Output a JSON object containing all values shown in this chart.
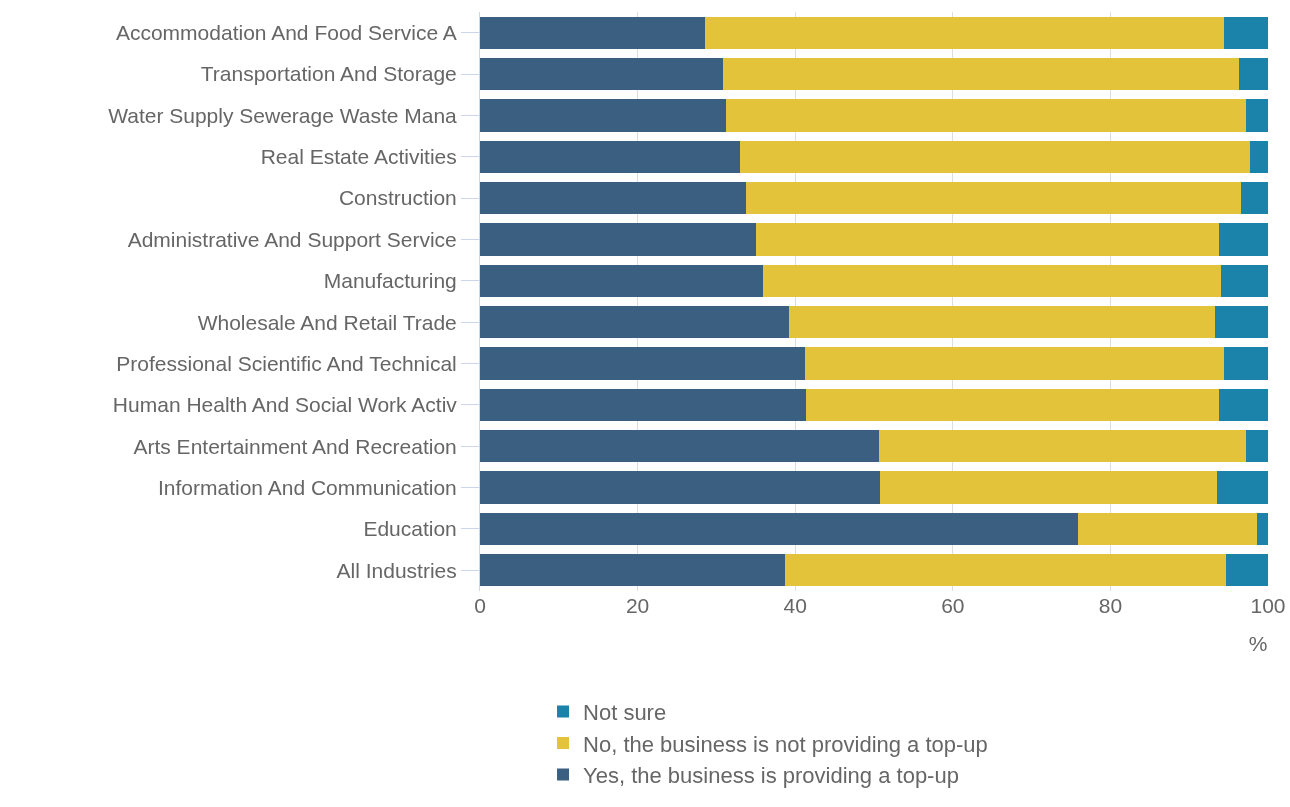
{
  "chart_data": {
    "type": "bar",
    "orientation": "horizontal",
    "stacked": true,
    "categories": [
      "Accommodation And Food Service A",
      "Transportation And Storage",
      "Water Supply Sewerage Waste Mana",
      "Real Estate Activities",
      "Construction",
      "Administrative And Support Service",
      "Manufacturing",
      "Wholesale And Retail Trade",
      "Professional Scientific And Technical",
      "Human Health And Social Work Activ",
      "Arts Entertainment And Recreation",
      "Information And Communication",
      "Education",
      "All Industries"
    ],
    "series": [
      {
        "name": "Yes, the business is providing a top-up",
        "color": "#3a5f80",
        "values": [
          28.6,
          30.9,
          31.2,
          33.0,
          33.8,
          35.0,
          35.9,
          39.2,
          41.2,
          41.4,
          50.6,
          50.8,
          75.9,
          38.7
        ]
      },
      {
        "name": "No, the business is not providing a top-up",
        "color": "#e3c33a",
        "values": [
          65.8,
          65.4,
          66.0,
          64.7,
          62.8,
          58.8,
          58.1,
          54.1,
          53.2,
          52.4,
          46.6,
          42.7,
          22.7,
          56.0
        ]
      },
      {
        "name": "Not sure",
        "color": "#1b83aa",
        "values": [
          5.6,
          3.7,
          2.8,
          2.3,
          3.4,
          6.2,
          6.0,
          6.7,
          5.6,
          6.2,
          2.8,
          6.5,
          1.4,
          5.3
        ]
      }
    ],
    "xlim": [
      0,
      100
    ],
    "xticks": [
      0,
      20,
      40,
      60,
      80,
      100
    ],
    "xlabel": "%",
    "grid": "x",
    "legend": "bottom"
  }
}
